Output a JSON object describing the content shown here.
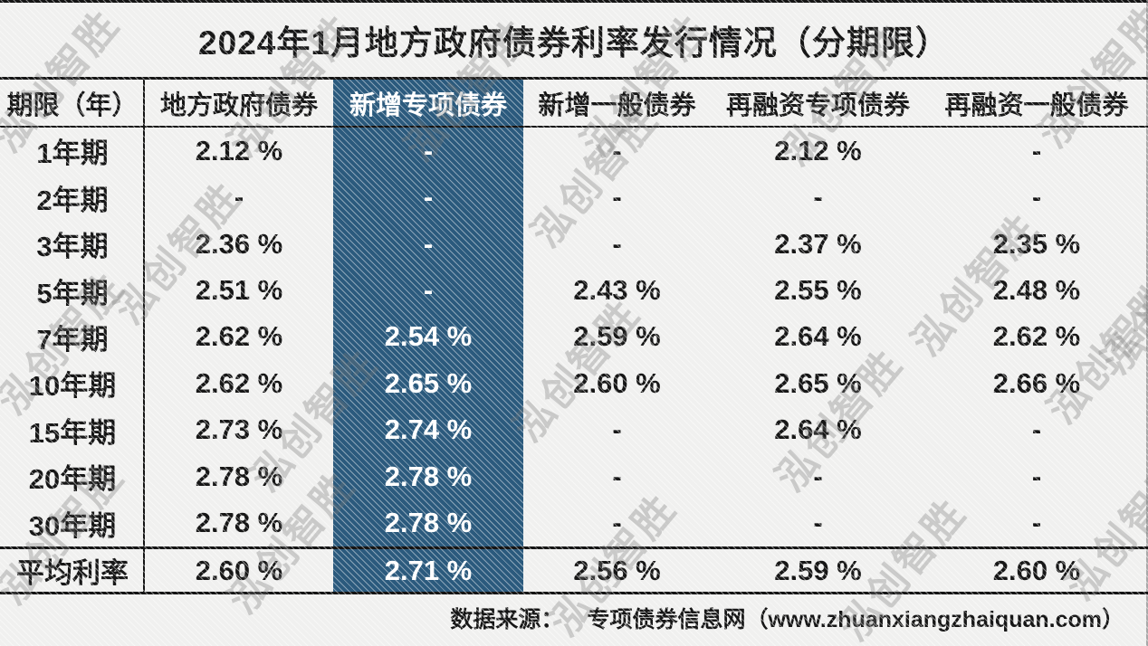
{
  "title": "2024年1月地方政府债券利率发行情况（分期限）",
  "watermark": {
    "text": "泓创智胜"
  },
  "footer": {
    "label": "数据来源：",
    "source": "专项债券信息网（www.zhuanxiangzhaiquan.com）"
  },
  "colors": {
    "highlight_blue": "#2b5a7d",
    "background": "#f0f0ef",
    "line": "#141414",
    "text": "#161616",
    "highlight_text": "#ffffff"
  },
  "table": {
    "columns": [
      "期限（年）",
      "地方政府债券",
      "新增专项债券",
      "新增一般债券",
      "再融资专项债券",
      "再融资一般债券"
    ],
    "highlight_column_index": 2,
    "rows": [
      {
        "label": "1年期",
        "values": [
          "2.12 %",
          "-",
          "-",
          "2.12 %",
          "-"
        ]
      },
      {
        "label": "2年期",
        "values": [
          "-",
          "-",
          "-",
          "-",
          "-"
        ]
      },
      {
        "label": "3年期",
        "values": [
          "2.36 %",
          "-",
          "-",
          "2.37 %",
          "2.35 %"
        ]
      },
      {
        "label": "5年期",
        "values": [
          "2.51 %",
          "-",
          "2.43 %",
          "2.55 %",
          "2.48 %"
        ]
      },
      {
        "label": "7年期",
        "values": [
          "2.62 %",
          "2.54 %",
          "2.59 %",
          "2.64 %",
          "2.62 %"
        ]
      },
      {
        "label": "10年期",
        "values": [
          "2.62 %",
          "2.65 %",
          "2.60 %",
          "2.65 %",
          "2.66 %"
        ]
      },
      {
        "label": "15年期",
        "values": [
          "2.73 %",
          "2.74 %",
          "-",
          "2.64 %",
          "-"
        ]
      },
      {
        "label": "20年期",
        "values": [
          "2.78 %",
          "2.78 %",
          "-",
          "-",
          "-"
        ]
      },
      {
        "label": "30年期",
        "values": [
          "2.78 %",
          "2.78 %",
          "-",
          "-",
          "-"
        ]
      }
    ],
    "summary": {
      "label": "平均利率",
      "values": [
        "2.60 %",
        "2.71 %",
        "2.56 %",
        "2.59 %",
        "2.60 %"
      ]
    }
  },
  "chart_data": {
    "type": "table",
    "title": "2024年1月地方政府债券利率发行情况（分期限）",
    "unit": "%",
    "categories": [
      "1年期",
      "2年期",
      "3年期",
      "5年期",
      "7年期",
      "10年期",
      "15年期",
      "20年期",
      "30年期",
      "平均利率"
    ],
    "series": [
      {
        "name": "地方政府债券",
        "values": [
          2.12,
          null,
          2.36,
          2.51,
          2.62,
          2.62,
          2.73,
          2.78,
          2.78,
          2.6
        ]
      },
      {
        "name": "新增专项债券",
        "values": [
          null,
          null,
          null,
          null,
          2.54,
          2.65,
          2.74,
          2.78,
          2.78,
          2.71
        ]
      },
      {
        "name": "新增一般债券",
        "values": [
          null,
          null,
          null,
          2.43,
          2.59,
          2.6,
          null,
          null,
          null,
          2.56
        ]
      },
      {
        "name": "再融资专项债券",
        "values": [
          2.12,
          null,
          2.37,
          2.55,
          2.64,
          2.65,
          2.64,
          null,
          null,
          2.59
        ]
      },
      {
        "name": "再融资一般债券",
        "values": [
          null,
          null,
          2.35,
          2.48,
          2.62,
          2.66,
          null,
          null,
          null,
          2.6
        ]
      }
    ],
    "highlighted_series": "新增专项债券",
    "source": "数据来源： 专项债券信息网（www.zhuanxiangzhaiquan.com）"
  }
}
